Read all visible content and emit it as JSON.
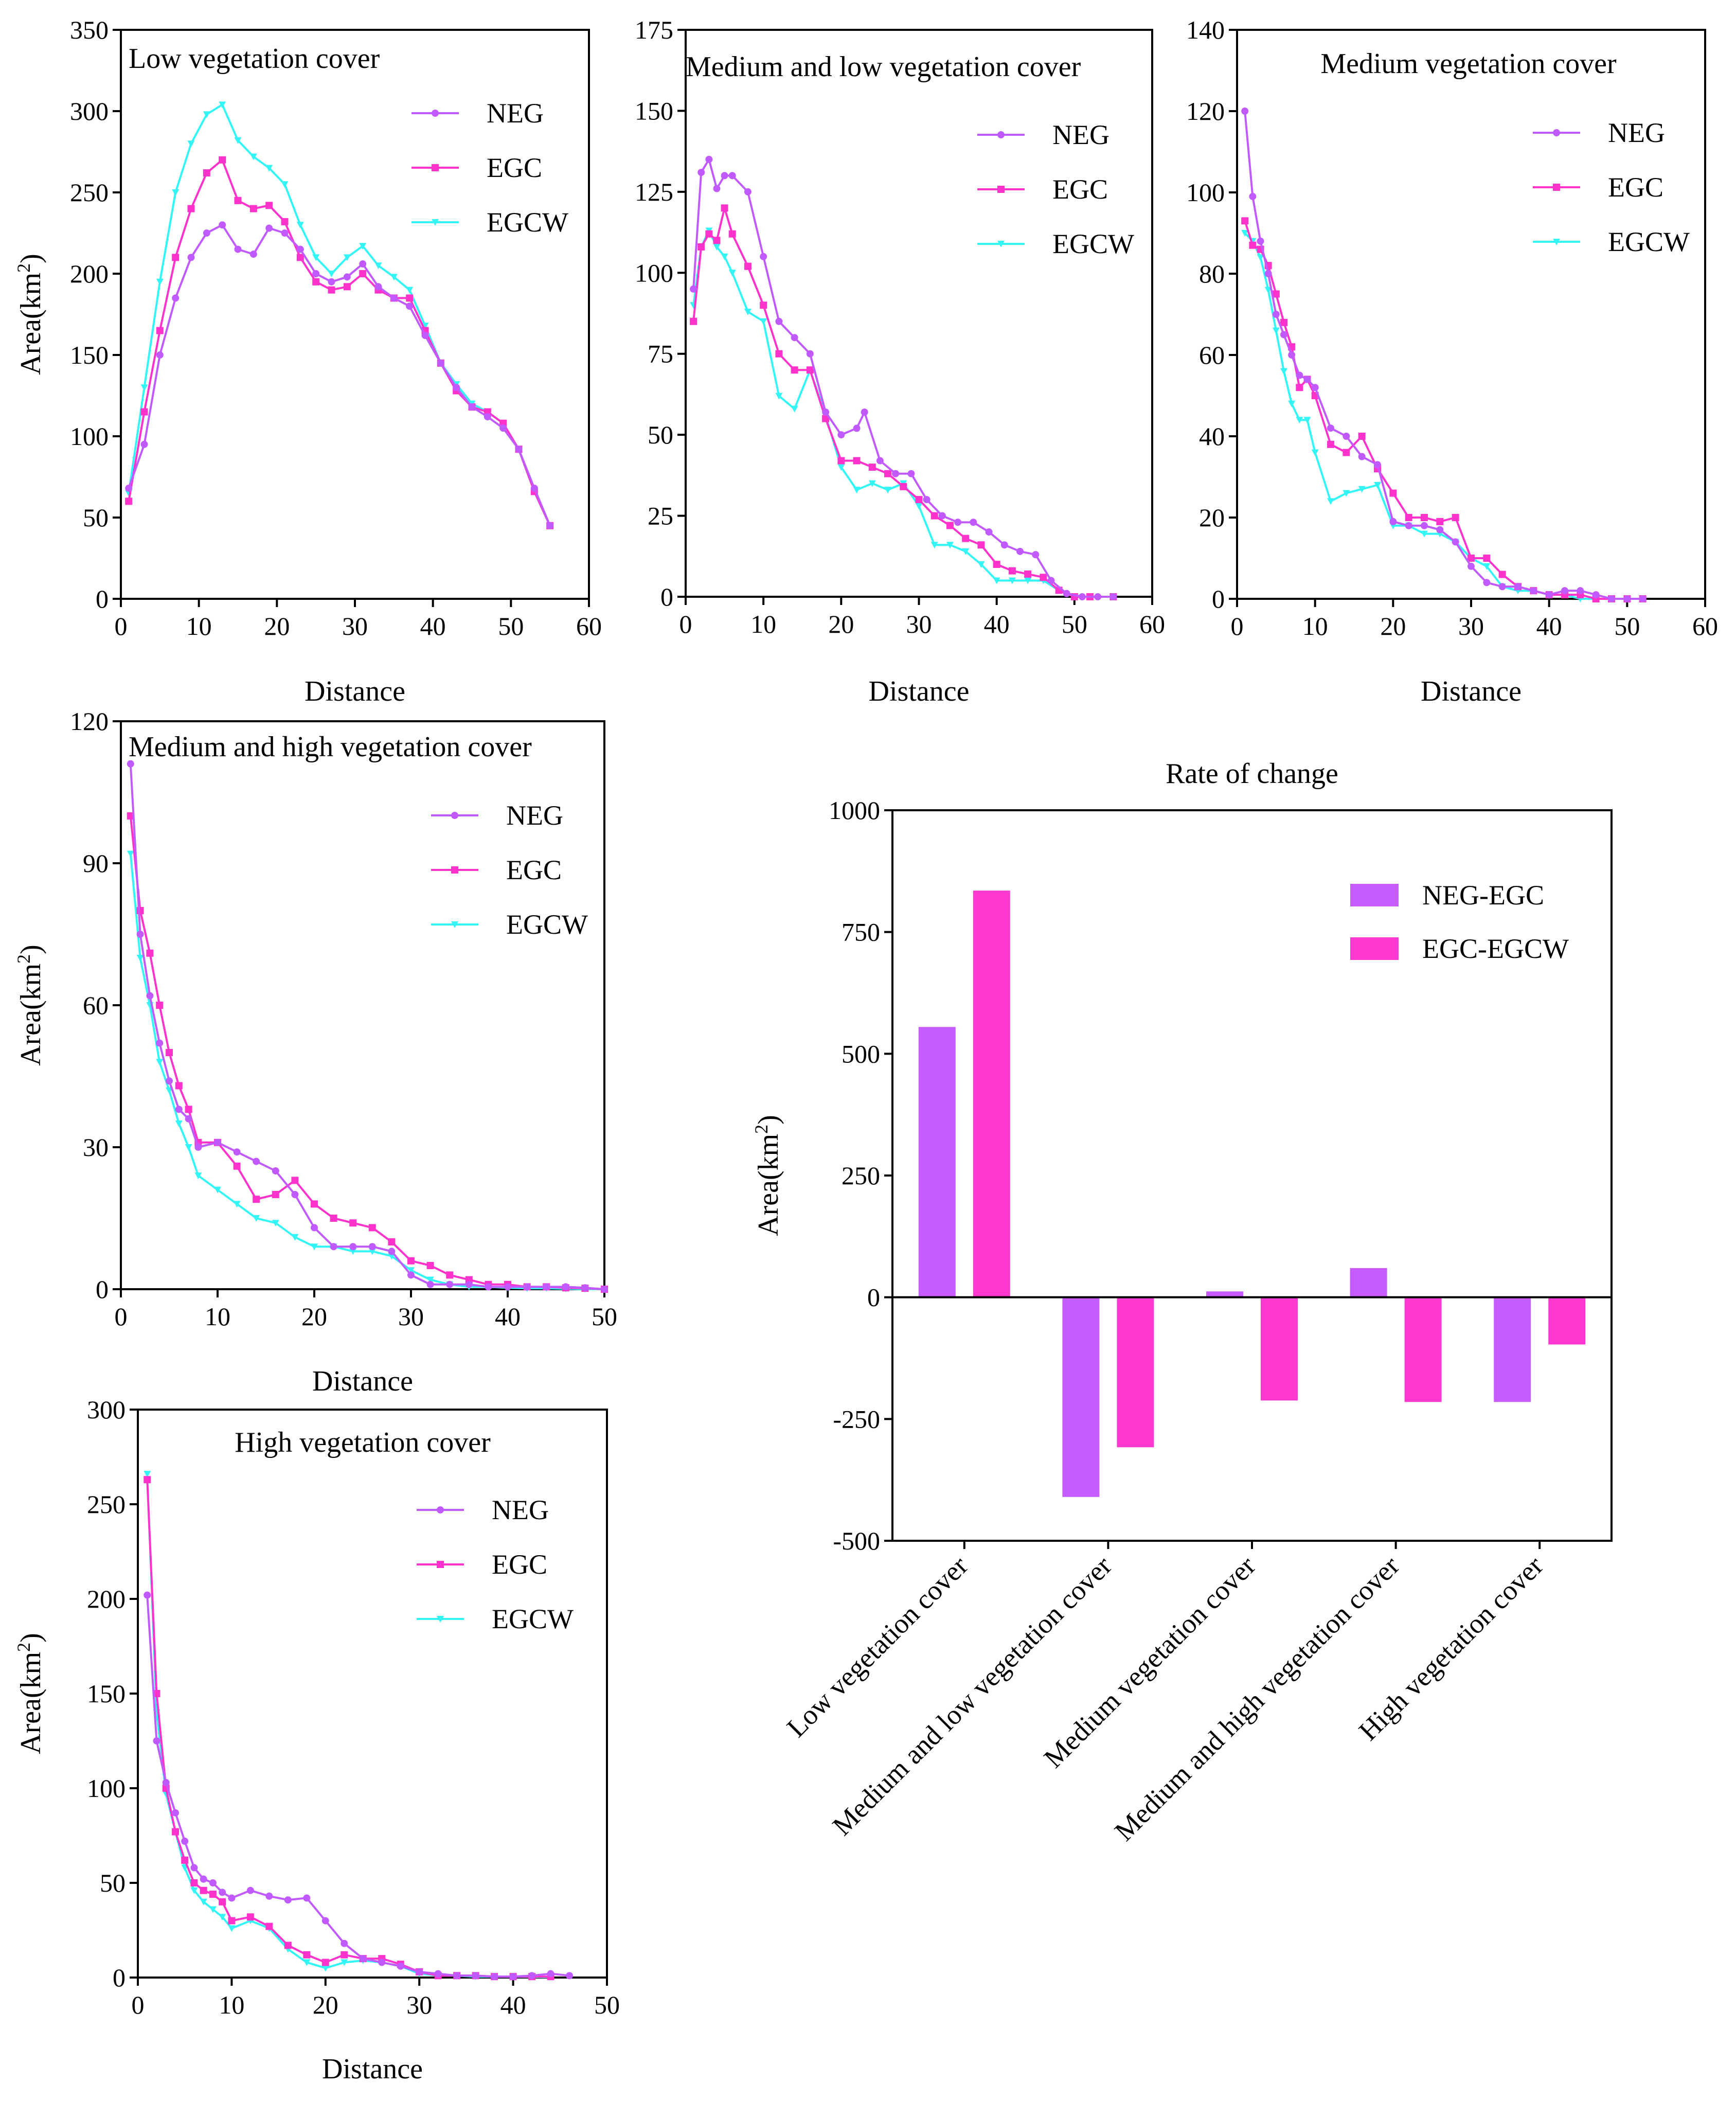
{
  "colors": {
    "NEG": "#c05aff",
    "EGC": "#ff33cc",
    "EGCW": "#33f5f5",
    "NEG-EGC": "#c65bff",
    "EGC-EGCW": "#ff38cf"
  },
  "chart_data": [
    {
      "id": "low",
      "type": "line",
      "title": "Low vegetation cover",
      "xlabel": "Distance",
      "ylabel": "Area(km²)",
      "xlim": [
        0,
        60
      ],
      "ylim": [
        0,
        350
      ],
      "xticks": [
        "0",
        "10",
        "20",
        "30",
        "40",
        "50",
        "60"
      ],
      "yticks": [
        "0",
        "50",
        "100",
        "150",
        "200",
        "250",
        "300",
        "350"
      ],
      "legend": [
        "NEG",
        "EGC",
        "EGCW"
      ],
      "series": [
        {
          "name": "NEG",
          "x": [
            1,
            3,
            5,
            7,
            9,
            11,
            13,
            15,
            17,
            19,
            21,
            23,
            25,
            27,
            29,
            31,
            33,
            35,
            37,
            39,
            41,
            43,
            45,
            47,
            49,
            51,
            53,
            55
          ],
          "y": [
            68,
            95,
            150,
            185,
            210,
            225,
            230,
            215,
            212,
            228,
            225,
            215,
            200,
            195,
            198,
            206,
            192,
            185,
            180,
            162,
            145,
            130,
            118,
            112,
            105,
            92,
            68,
            45
          ]
        },
        {
          "name": "EGC",
          "x": [
            1,
            3,
            5,
            7,
            9,
            11,
            13,
            15,
            17,
            19,
            21,
            23,
            25,
            27,
            29,
            31,
            33,
            35,
            37,
            39,
            41,
            43,
            45,
            47,
            49,
            51,
            53,
            55
          ],
          "y": [
            60,
            115,
            165,
            210,
            240,
            262,
            270,
            245,
            240,
            242,
            232,
            210,
            195,
            190,
            192,
            200,
            190,
            185,
            185,
            165,
            145,
            128,
            118,
            115,
            108,
            92,
            66,
            45
          ]
        },
        {
          "name": "EGCW",
          "x": [
            1,
            3,
            5,
            7,
            9,
            11,
            13,
            15,
            17,
            19,
            21,
            23,
            25,
            27,
            29,
            31,
            33,
            35,
            37,
            39,
            41,
            43,
            45,
            47,
            49,
            51,
            53,
            55
          ],
          "y": [
            65,
            130,
            195,
            250,
            280,
            298,
            304,
            282,
            272,
            265,
            255,
            230,
            210,
            200,
            210,
            217,
            205,
            198,
            190,
            168,
            145,
            132,
            120,
            115,
            108,
            92,
            66,
            45
          ]
        }
      ]
    },
    {
      "id": "medlow",
      "type": "line",
      "title": "Medium and low vegetation cover",
      "xlabel": "Distance",
      "ylabel": "",
      "xlim": [
        0,
        60
      ],
      "ylim": [
        0,
        175
      ],
      "xticks": [
        "0",
        "10",
        "20",
        "30",
        "40",
        "50",
        "60"
      ],
      "yticks": [
        "0",
        "25",
        "50",
        "75",
        "100",
        "125",
        "150",
        "175"
      ],
      "legend": [
        "NEG",
        "EGC",
        "EGCW"
      ],
      "series": [
        {
          "name": "NEG",
          "x": [
            1,
            2,
            3,
            4,
            5,
            6,
            8,
            10,
            12,
            14,
            16,
            18,
            20,
            22,
            23,
            25,
            27,
            29,
            31,
            33,
            35,
            37,
            39,
            41,
            43,
            45,
            47,
            49,
            51,
            53,
            55
          ],
          "y": [
            95,
            131,
            135,
            126,
            130,
            130,
            125,
            105,
            85,
            80,
            75,
            57,
            50,
            52,
            57,
            42,
            38,
            38,
            30,
            25,
            23,
            23,
            20,
            16,
            14,
            13,
            5,
            1,
            0,
            0,
            0
          ]
        },
        {
          "name": "EGC",
          "x": [
            1,
            2,
            3,
            4,
            5,
            6,
            8,
            10,
            12,
            14,
            16,
            18,
            20,
            22,
            24,
            26,
            28,
            30,
            32,
            34,
            36,
            38,
            40,
            42,
            44,
            46,
            48,
            50,
            52,
            55
          ],
          "y": [
            85,
            108,
            112,
            110,
            120,
            112,
            102,
            90,
            75,
            70,
            70,
            55,
            42,
            42,
            40,
            38,
            34,
            30,
            25,
            22,
            18,
            16,
            10,
            8,
            7,
            6,
            2,
            0,
            0,
            0
          ]
        },
        {
          "name": "EGCW",
          "x": [
            1,
            2,
            3,
            4,
            5,
            6,
            8,
            10,
            12,
            14,
            16,
            18,
            20,
            22,
            24,
            26,
            28,
            30,
            32,
            34,
            36,
            38,
            40,
            42,
            44,
            46,
            48,
            50,
            52,
            55
          ],
          "y": [
            90,
            108,
            113,
            108,
            105,
            100,
            88,
            85,
            62,
            58,
            70,
            56,
            40,
            33,
            35,
            33,
            35,
            28,
            16,
            16,
            14,
            10,
            5,
            5,
            5,
            5,
            2,
            0,
            0,
            0
          ]
        }
      ]
    },
    {
      "id": "medium",
      "type": "line",
      "title": "Medium vegetation cover",
      "xlabel": "Distance",
      "ylabel": "",
      "xlim": [
        0,
        60
      ],
      "ylim": [
        0,
        140
      ],
      "xticks": [
        "0",
        "10",
        "20",
        "30",
        "40",
        "50",
        "60"
      ],
      "yticks": [
        "0",
        "20",
        "40",
        "60",
        "80",
        "100",
        "120",
        "140"
      ],
      "legend": [
        "NEG",
        "EGC",
        "EGCW"
      ],
      "series": [
        {
          "name": "NEG",
          "x": [
            1,
            2,
            3,
            4,
            5,
            6,
            7,
            8,
            9,
            10,
            12,
            14,
            16,
            18,
            20,
            22,
            24,
            26,
            28,
            30,
            32,
            34,
            36,
            38,
            40,
            42,
            44,
            46,
            48,
            50,
            52
          ],
          "y": [
            120,
            99,
            88,
            80,
            70,
            65,
            60,
            55,
            54,
            52,
            42,
            40,
            35,
            33,
            19,
            18,
            18,
            17,
            14,
            8,
            4,
            3,
            3,
            2,
            1,
            2,
            2,
            1,
            0,
            0,
            0
          ]
        },
        {
          "name": "EGC",
          "x": [
            1,
            2,
            3,
            4,
            5,
            6,
            7,
            8,
            9,
            10,
            12,
            14,
            16,
            18,
            20,
            22,
            24,
            26,
            28,
            30,
            32,
            34,
            36,
            38,
            40,
            42,
            44,
            46,
            48,
            50,
            52
          ],
          "y": [
            93,
            87,
            86,
            82,
            75,
            68,
            62,
            52,
            54,
            50,
            38,
            36,
            40,
            32,
            26,
            20,
            20,
            19,
            20,
            10,
            10,
            6,
            3,
            2,
            1,
            1,
            1,
            0,
            0,
            0,
            0
          ]
        },
        {
          "name": "EGCW",
          "x": [
            1,
            2,
            3,
            4,
            5,
            6,
            7,
            8,
            9,
            10,
            12,
            14,
            16,
            18,
            20,
            22,
            24,
            26,
            28,
            30,
            32,
            34,
            36,
            38,
            40,
            42,
            44,
            46,
            48,
            50,
            52
          ],
          "y": [
            90,
            88,
            84,
            76,
            66,
            56,
            48,
            44,
            44,
            36,
            24,
            26,
            27,
            28,
            18,
            18,
            16,
            16,
            14,
            10,
            8,
            3,
            2,
            2,
            1,
            1,
            0,
            0,
            0,
            0,
            0
          ]
        }
      ]
    },
    {
      "id": "medhigh",
      "type": "line",
      "title": "Medium and high vegetation cover",
      "xlabel": "Distance",
      "ylabel": "Area(km²)",
      "xlim": [
        0,
        50
      ],
      "ylim": [
        0,
        120
      ],
      "xticks": [
        "0",
        "10",
        "20",
        "30",
        "40",
        "50"
      ],
      "yticks": [
        "0",
        "30",
        "60",
        "90",
        "120"
      ],
      "legend": [
        "NEG",
        "EGC",
        "EGCW"
      ],
      "series": [
        {
          "name": "NEG",
          "x": [
            1,
            2,
            3,
            4,
            5,
            6,
            7,
            8,
            10,
            12,
            14,
            16,
            18,
            20,
            22,
            24,
            26,
            28,
            30,
            32,
            34,
            36,
            38,
            40,
            42,
            44,
            46,
            48,
            50
          ],
          "y": [
            111,
            75,
            62,
            52,
            44,
            38,
            36,
            30,
            31,
            29,
            27,
            25,
            20,
            13,
            9,
            9,
            9,
            8,
            3,
            1,
            1,
            1,
            0.5,
            0.5,
            0.5,
            0.5,
            0.5,
            0.3,
            0
          ]
        },
        {
          "name": "EGC",
          "x": [
            1,
            2,
            3,
            4,
            5,
            6,
            7,
            8,
            10,
            12,
            14,
            16,
            18,
            20,
            22,
            24,
            26,
            28,
            30,
            32,
            34,
            36,
            38,
            40,
            42,
            44,
            46,
            48,
            50
          ],
          "y": [
            100,
            80,
            71,
            60,
            50,
            43,
            38,
            31,
            31,
            26,
            19,
            20,
            23,
            18,
            15,
            14,
            13,
            10,
            6,
            5,
            3,
            2,
            1,
            1,
            0.5,
            0.5,
            0.3,
            0.2,
            0
          ]
        },
        {
          "name": "EGCW",
          "x": [
            1,
            2,
            3,
            4,
            5,
            6,
            7,
            8,
            10,
            12,
            14,
            16,
            18,
            20,
            22,
            24,
            26,
            28,
            30,
            32,
            34,
            36,
            38,
            40,
            42,
            44,
            46,
            48,
            50
          ],
          "y": [
            92,
            70,
            60,
            48,
            42,
            35,
            30,
            24,
            21,
            18,
            15,
            14,
            11,
            9,
            9,
            8,
            8,
            7,
            4,
            2,
            1,
            0.5,
            0.5,
            0.3,
            0.2,
            0.2,
            0.1,
            0,
            0
          ]
        }
      ]
    },
    {
      "id": "high",
      "type": "line",
      "title": "High vegetation cover",
      "xlabel": "Distance",
      "ylabel": "Area(km²)",
      "xlim": [
        0,
        50
      ],
      "ylim": [
        0,
        300
      ],
      "xticks": [
        "0",
        "10",
        "20",
        "30",
        "40",
        "50"
      ],
      "yticks": [
        "0",
        "50",
        "100",
        "150",
        "200",
        "250",
        "300"
      ],
      "legend": [
        "NEG",
        "EGC",
        "EGCW"
      ],
      "series": [
        {
          "name": "NEG",
          "x": [
            1,
            2,
            3,
            4,
            5,
            6,
            7,
            8,
            9,
            10,
            12,
            14,
            16,
            18,
            20,
            22,
            24,
            26,
            28,
            30,
            32,
            34,
            36,
            38,
            40,
            42,
            44,
            46
          ],
          "y": [
            202,
            125,
            103,
            87,
            72,
            58,
            52,
            50,
            45,
            42,
            46,
            43,
            41,
            42,
            30,
            18,
            10,
            8,
            6,
            3,
            2,
            1,
            1,
            0.5,
            0.5,
            1,
            2,
            1
          ]
        },
        {
          "name": "EGC",
          "x": [
            1,
            2,
            3,
            4,
            5,
            6,
            7,
            8,
            9,
            10,
            12,
            14,
            16,
            18,
            20,
            22,
            24,
            26,
            28,
            30,
            32,
            34,
            36,
            38,
            40,
            42,
            44
          ],
          "y": [
            263,
            150,
            100,
            77,
            62,
            50,
            46,
            44,
            40,
            30,
            32,
            27,
            17,
            12,
            8,
            12,
            10,
            10,
            7,
            3,
            1,
            1,
            1,
            0.5,
            0.5,
            0.5,
            0.5
          ]
        },
        {
          "name": "EGCW",
          "x": [
            1,
            2,
            3,
            4,
            5,
            6,
            7,
            8,
            9,
            10,
            12,
            14,
            16,
            18,
            20,
            22,
            24,
            26,
            28,
            30,
            32,
            34,
            36,
            38,
            40,
            42,
            44
          ],
          "y": [
            266,
            140,
            97,
            77,
            58,
            46,
            40,
            36,
            32,
            26,
            30,
            26,
            15,
            8,
            5,
            8,
            9,
            8,
            6,
            2,
            1,
            1,
            0.5,
            0.5,
            0.5,
            0.3,
            0.2
          ]
        }
      ]
    },
    {
      "id": "rate",
      "type": "bar",
      "title": "Rate of change",
      "xlabel": "",
      "ylabel": "Area(km²)",
      "ylim": [
        -500,
        1000
      ],
      "yticks": [
        "-500",
        "-250",
        "0",
        "250",
        "500",
        "750",
        "1000"
      ],
      "categories": [
        "Low vegetation cover",
        "Medium and low vegetation cover",
        "Medium vegetation cover",
        "Medium and high vegetation cover",
        "High vegetation cover"
      ],
      "legend": [
        "NEG-EGC",
        "EGC-EGCW"
      ],
      "series": [
        {
          "name": "NEG-EGC",
          "values": [
            555,
            -410,
            12,
            60,
            -215
          ]
        },
        {
          "name": "EGC-EGCW",
          "values": [
            835,
            -308,
            -212,
            -215,
            -97
          ]
        }
      ]
    }
  ]
}
